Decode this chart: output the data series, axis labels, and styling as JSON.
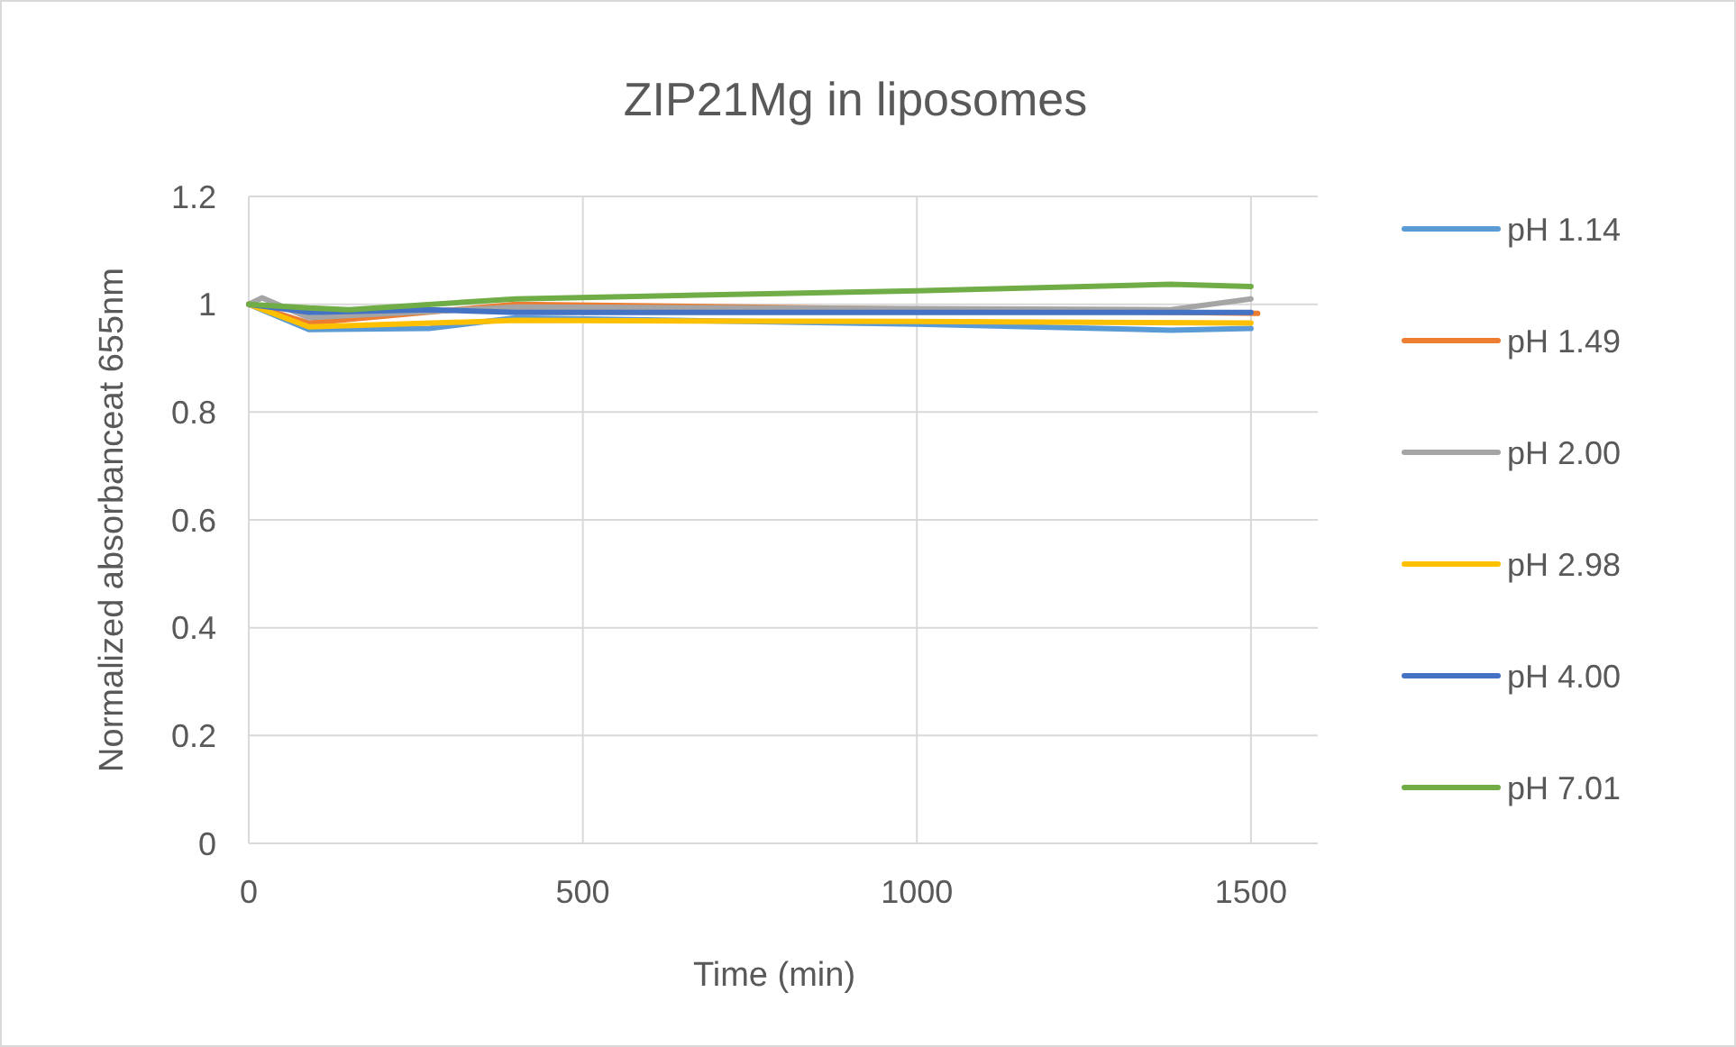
{
  "chart_data": {
    "type": "line",
    "title": "ZIP21Mg in liposomes",
    "xlabel": "Time (min)",
    "ylabel": "Normalized absorbanceat 655nm",
    "xlim": [
      0,
      1600
    ],
    "xticks": [
      0,
      500,
      1000,
      1500
    ],
    "ylim": [
      0,
      1.2
    ],
    "yticks": [
      0,
      0.2,
      0.4,
      0.6,
      0.8,
      1,
      1.2
    ],
    "grid": true,
    "legend": "right",
    "marker": "none",
    "line_style": "solid",
    "series": [
      {
        "name": "pH 1.14",
        "color": "#5b9bd5",
        "x": [
          0,
          90,
          270,
          400,
          1000,
          1380,
          1500
        ],
        "values": [
          1,
          0.953,
          0.955,
          0.975,
          0.963,
          0.952,
          0.955
        ]
      },
      {
        "name": "pH 1.49",
        "color": "#ed7d31",
        "x": [
          0,
          90,
          400,
          1510
        ],
        "values": [
          1,
          0.965,
          1.0,
          0.983
        ]
      },
      {
        "name": "pH 2.00",
        "color": "#a5a5a5",
        "x": [
          0,
          20,
          90,
          400,
          1380,
          1500
        ],
        "values": [
          1,
          1.012,
          0.975,
          0.995,
          0.99,
          1.01
        ]
      },
      {
        "name": "pH 2.98",
        "color": "#ffc000",
        "x": [
          0,
          90,
          400,
          1000,
          1500
        ],
        "values": [
          1,
          0.958,
          0.97,
          0.968,
          0.965
        ]
      },
      {
        "name": "pH 4.00",
        "color": "#4472c4",
        "x": [
          0,
          90,
          270,
          400,
          1500
        ],
        "values": [
          1,
          0.985,
          0.99,
          0.985,
          0.985
        ]
      },
      {
        "name": "pH 7.01",
        "color": "#70ad47",
        "x": [
          0,
          90,
          150,
          400,
          1000,
          1380,
          1500
        ],
        "values": [
          1,
          0.993,
          0.99,
          1.01,
          1.025,
          1.037,
          1.033
        ]
      }
    ]
  }
}
